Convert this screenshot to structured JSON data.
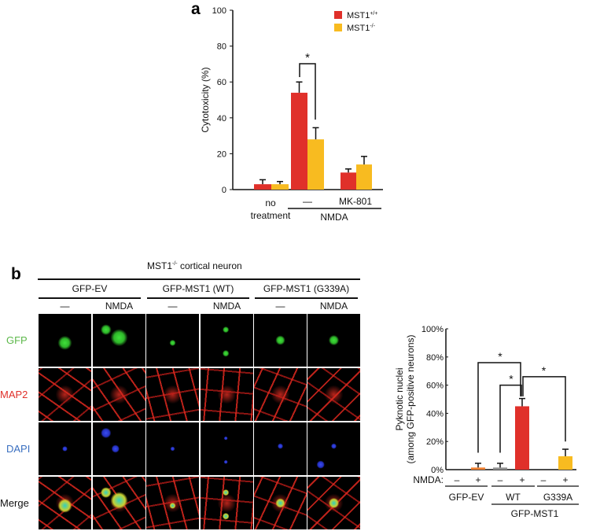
{
  "panel_a": {
    "label": "a"
  },
  "panel_b": {
    "label": "b",
    "title": "MST1-/- cortical neuron",
    "title_main": "MST1",
    "title_sup": "-/-",
    "title_rest": " cortical neuron",
    "groups": [
      "GFP-EV",
      "GFP-MST1 (WT)",
      "GFP-MST1 (G339A)"
    ],
    "conditions": [
      "—",
      "NMDA",
      "—",
      "NMDA",
      "—",
      "NMDA"
    ],
    "rows": [
      {
        "label": "GFP",
        "color": "#5cb84a"
      },
      {
        "label": "MAP2",
        "color": "#e0302a"
      },
      {
        "label": "DAPI",
        "color": "#3a6fc0"
      },
      {
        "label": "Merge",
        "color": "#111111"
      }
    ]
  },
  "chart_data": [
    {
      "type": "bar",
      "ylabel": "Cytotoxicity (%)",
      "ylim": [
        0,
        100
      ],
      "yticks": [
        "0",
        "20",
        "40",
        "60",
        "80",
        "100"
      ],
      "categories": [
        "no treatment",
        "—",
        "MK-801"
      ],
      "category_lines": [
        [
          "no",
          "treatment"
        ],
        [
          "—"
        ],
        [
          "MK-801"
        ]
      ],
      "group_label": "NMDA",
      "series": [
        {
          "name": "MST1+/+",
          "base": "MST1",
          "sup": "+/+",
          "color": "#e0302a",
          "values": [
            3,
            54,
            9.5
          ],
          "errors": [
            2.5,
            6,
            2
          ]
        },
        {
          "name": "MST1-/-",
          "base": "MST1",
          "sup": "-/-",
          "color": "#f8bb20",
          "values": [
            3,
            28,
            14
          ],
          "errors": [
            1.5,
            6.5,
            4.5
          ]
        }
      ],
      "significance": [
        {
          "label": "*",
          "between": [
            "MST1+/+ NMDA",
            "MST1-/- NMDA"
          ]
        }
      ],
      "legend": "top-right"
    },
    {
      "type": "bar",
      "ylabel": "Pyknotic nuclei",
      "ylabel2": "(among GFP-positive neurons)",
      "ylim": [
        0,
        100
      ],
      "yticks": [
        "0%",
        "20%",
        "40%",
        "60%",
        "80%",
        "100%"
      ],
      "row_label": "NMDA:",
      "nmda": [
        "–",
        "+",
        "–",
        "+",
        "–",
        "+"
      ],
      "groups": [
        "GFP-EV",
        "WT",
        "G339A"
      ],
      "super_group": "GFP-MST1",
      "values": [
        0,
        1.5,
        1.5,
        45,
        0,
        9.5
      ],
      "errors": [
        0,
        3,
        3,
        5.5,
        0,
        5
      ],
      "colors": [
        "#888888",
        "#f08030",
        "#909090",
        "#e0302a",
        "#888888",
        "#f8bb20"
      ],
      "significance": [
        {
          "label": "*",
          "between": [
            1,
            3
          ]
        },
        {
          "label": "*",
          "between": [
            2,
            3
          ]
        },
        {
          "label": "*",
          "between": [
            3,
            5
          ]
        }
      ]
    }
  ]
}
